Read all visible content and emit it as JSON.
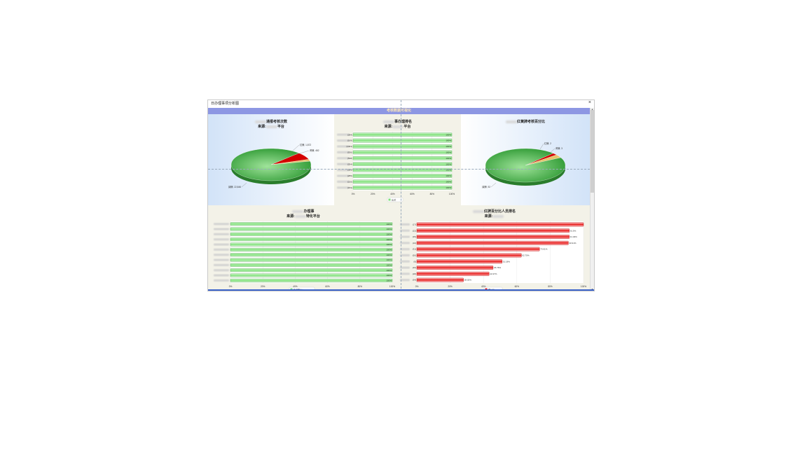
{
  "window": {
    "title": "日办理事项分析图",
    "close_label": "×"
  },
  "banner": {
    "title": "考核数据可视化"
  },
  "pie_left": {
    "title_suffix": "通报考核次数",
    "subtitle_prefix": "来源:",
    "subtitle_suffix": "平台",
    "chart_data": {
      "type": "pie",
      "labels": [
        "红牌",
        "黄牌",
        "绿牌"
      ],
      "values": [
        1872,
        482,
        22846
      ],
      "label_texts": [
        "红牌, 1,872",
        "黄牌, 482",
        "绿牌, 22,846"
      ],
      "colors": [
        "#d40000",
        "#e6c46c",
        "#3fa83f"
      ]
    }
  },
  "pie_right": {
    "title_suffix": "红黄牌考核百分比",
    "chart_data": {
      "type": "pie",
      "labels": [
        "红牌",
        "黄牌",
        "绿牌"
      ],
      "values": [
        2,
        3,
        92
      ],
      "label_texts": [
        "红牌, 2",
        "黄牌, 3",
        "绿牌, 92"
      ],
      "colors": [
        "#d40000",
        "#e6c46c",
        "#3fa83f"
      ]
    }
  },
  "bar_top": {
    "title_suffix": "事办理排名",
    "subtitle_prefix": "来源:",
    "subtitle_suffix": "平台",
    "legend": "比对",
    "chart_data": {
      "type": "bar",
      "orientation": "horizontal",
      "categories": [
        "(284)",
        "(169)",
        "(1443)",
        "(536)",
        "(538)",
        "(254)",
        "(359)",
        "(255)",
        "(216)",
        "(153)"
      ],
      "values": [
        100,
        100,
        100,
        100,
        100,
        100,
        100,
        100,
        100,
        100
      ],
      "value_labels": [
        "100%",
        "100%",
        "100%",
        "100%",
        "100%",
        "100%",
        "100%",
        "100%",
        "100%",
        "100%"
      ],
      "xticks": [
        "0%",
        "20%",
        "40%",
        "60%",
        "80%",
        "100%"
      ],
      "xlim": [
        0,
        100
      ],
      "color": "#7fe07a"
    }
  },
  "bar_left": {
    "title_suffix": "办理事",
    "subtitle_prefix": "来源:",
    "subtitle_suffix": "特化平台",
    "legend": "及时率(%)",
    "chart_data": {
      "type": "bar",
      "orientation": "horizontal",
      "categories": [
        "",
        "",
        "",
        "",
        "",
        "",
        "",
        "",
        "",
        "",
        "",
        ""
      ],
      "values": [
        100,
        100,
        100,
        100,
        100,
        100,
        100,
        100,
        100,
        100,
        100,
        100
      ],
      "value_labels": [
        "100%",
        "100%",
        "100%",
        "100%",
        "100%",
        "100%",
        "100%",
        "100%",
        "100%",
        "100%",
        "100%",
        "100%"
      ],
      "xticks": [
        "0%",
        "20%",
        "40%",
        "60%",
        "80%",
        "100%"
      ],
      "xlim": [
        0,
        100
      ],
      "color": "#7fe07a"
    }
  },
  "bar_right": {
    "title_suffix": "红牌百分比人员排名",
    "subtitle_prefix": "来源:",
    "legend": "百分比",
    "chart_data": {
      "type": "bar",
      "orientation": "horizontal",
      "categories": [
        "(17)",
        "(22)",
        "(35)",
        "(10)",
        "(31)",
        "(50)",
        "(9)",
        "(46)",
        "(28)",
        "(34)"
      ],
      "values": [
        100,
        91.5,
        91.46,
        90.91,
        73.61,
        62.75,
        51.18,
        45.76,
        43.37,
        28.02
      ],
      "value_labels": [
        "",
        "91.5%",
        "91.46%",
        "90.91%",
        "73.61%",
        "62.75%",
        "51.18%",
        "45.76%",
        "43.37%",
        "28.02%"
      ],
      "xticks": [
        "0%",
        "20%",
        "40%",
        "60%",
        "80%",
        "100%"
      ],
      "xlim": [
        0,
        100
      ],
      "color": "#e61b1b"
    }
  }
}
